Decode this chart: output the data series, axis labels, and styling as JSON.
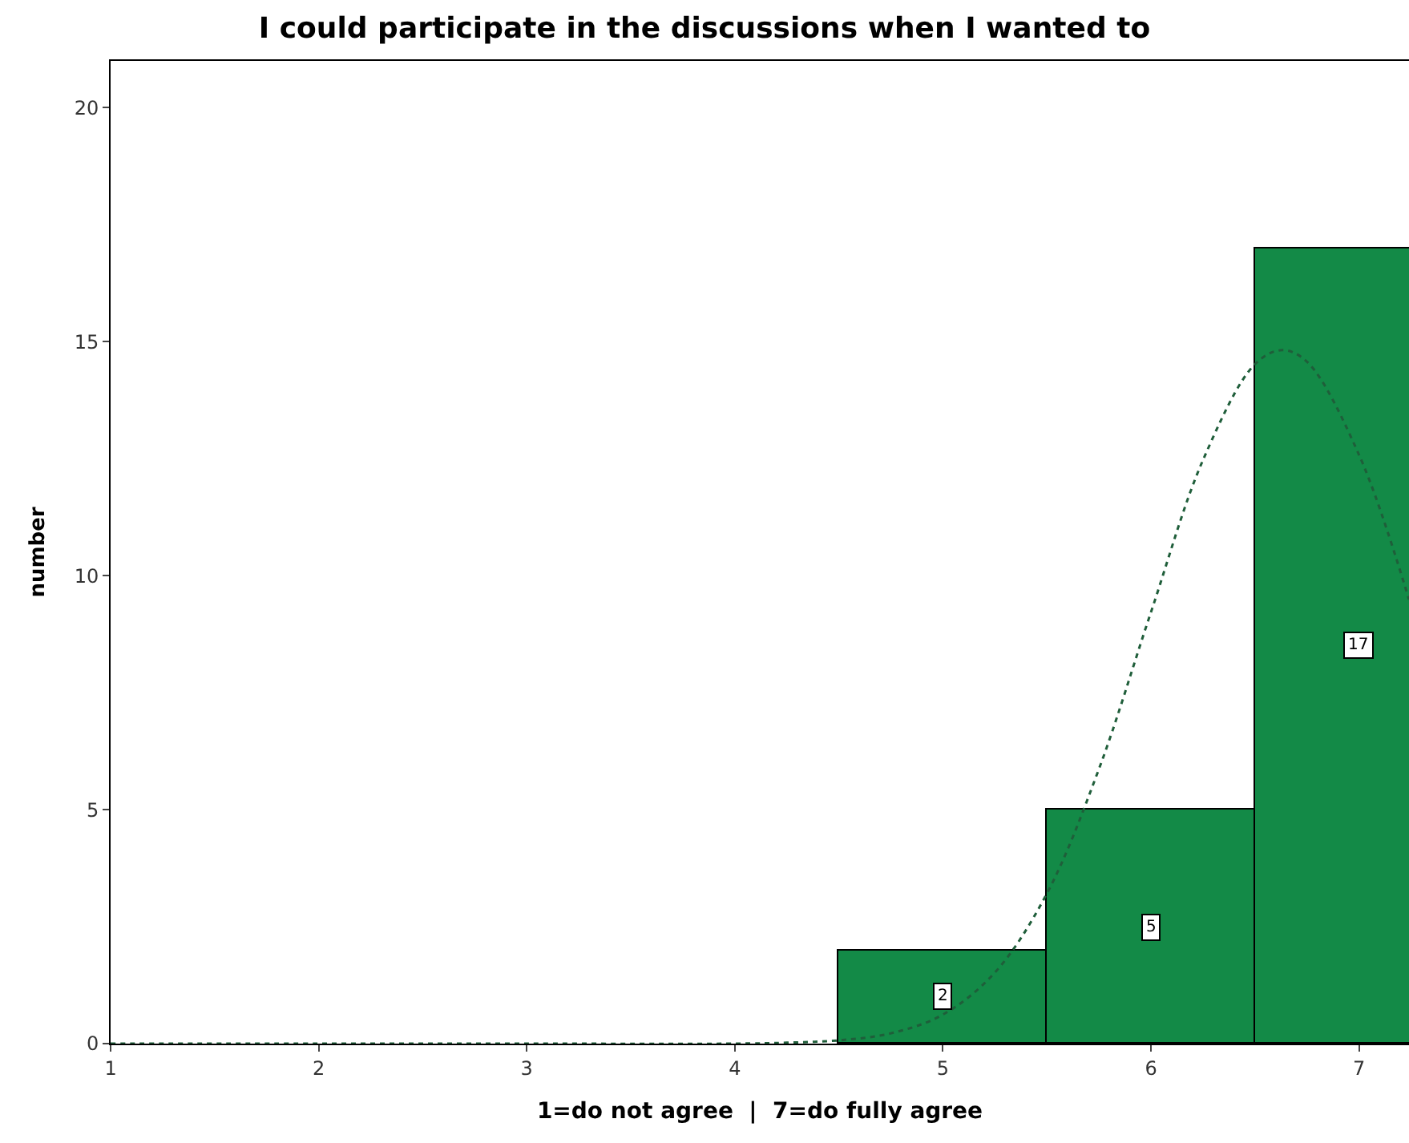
{
  "chart_data": {
    "type": "histogram",
    "title": "I could participate in the discussions when I wanted to",
    "xlabel": "1=do not agree  |  7=do fully agree",
    "ylabel": "number",
    "bins": [
      4.5,
      5.5,
      6.5,
      7.5
    ],
    "values": [
      2,
      5,
      17
    ],
    "color": "#138a47",
    "value_labels": [
      "2",
      "5",
      "17"
    ],
    "series": [
      {
        "type": "line",
        "color": "#1f5e3a",
        "line_style": "dotted",
        "x": [
          1,
          2,
          3,
          4,
          4.25,
          4.5,
          4.75,
          5,
          5.25,
          5.5,
          5.75,
          6,
          6.25,
          6.5,
          6.63,
          6.75,
          7,
          7.24
        ],
        "values": [
          0,
          0,
          0,
          0,
          0.02,
          0.07,
          0.22,
          0.62,
          1.52,
          3.21,
          5.87,
          9.22,
          12.47,
          14.52,
          14.82,
          14.57,
          12.58,
          9.49
        ]
      }
    ],
    "xlim": [
      1,
      7.24
    ],
    "ylim": [
      0,
      21
    ],
    "xticks": [
      1,
      2,
      3,
      4,
      5,
      6,
      7
    ],
    "yticks": [
      0,
      5,
      10,
      15,
      20
    ]
  }
}
